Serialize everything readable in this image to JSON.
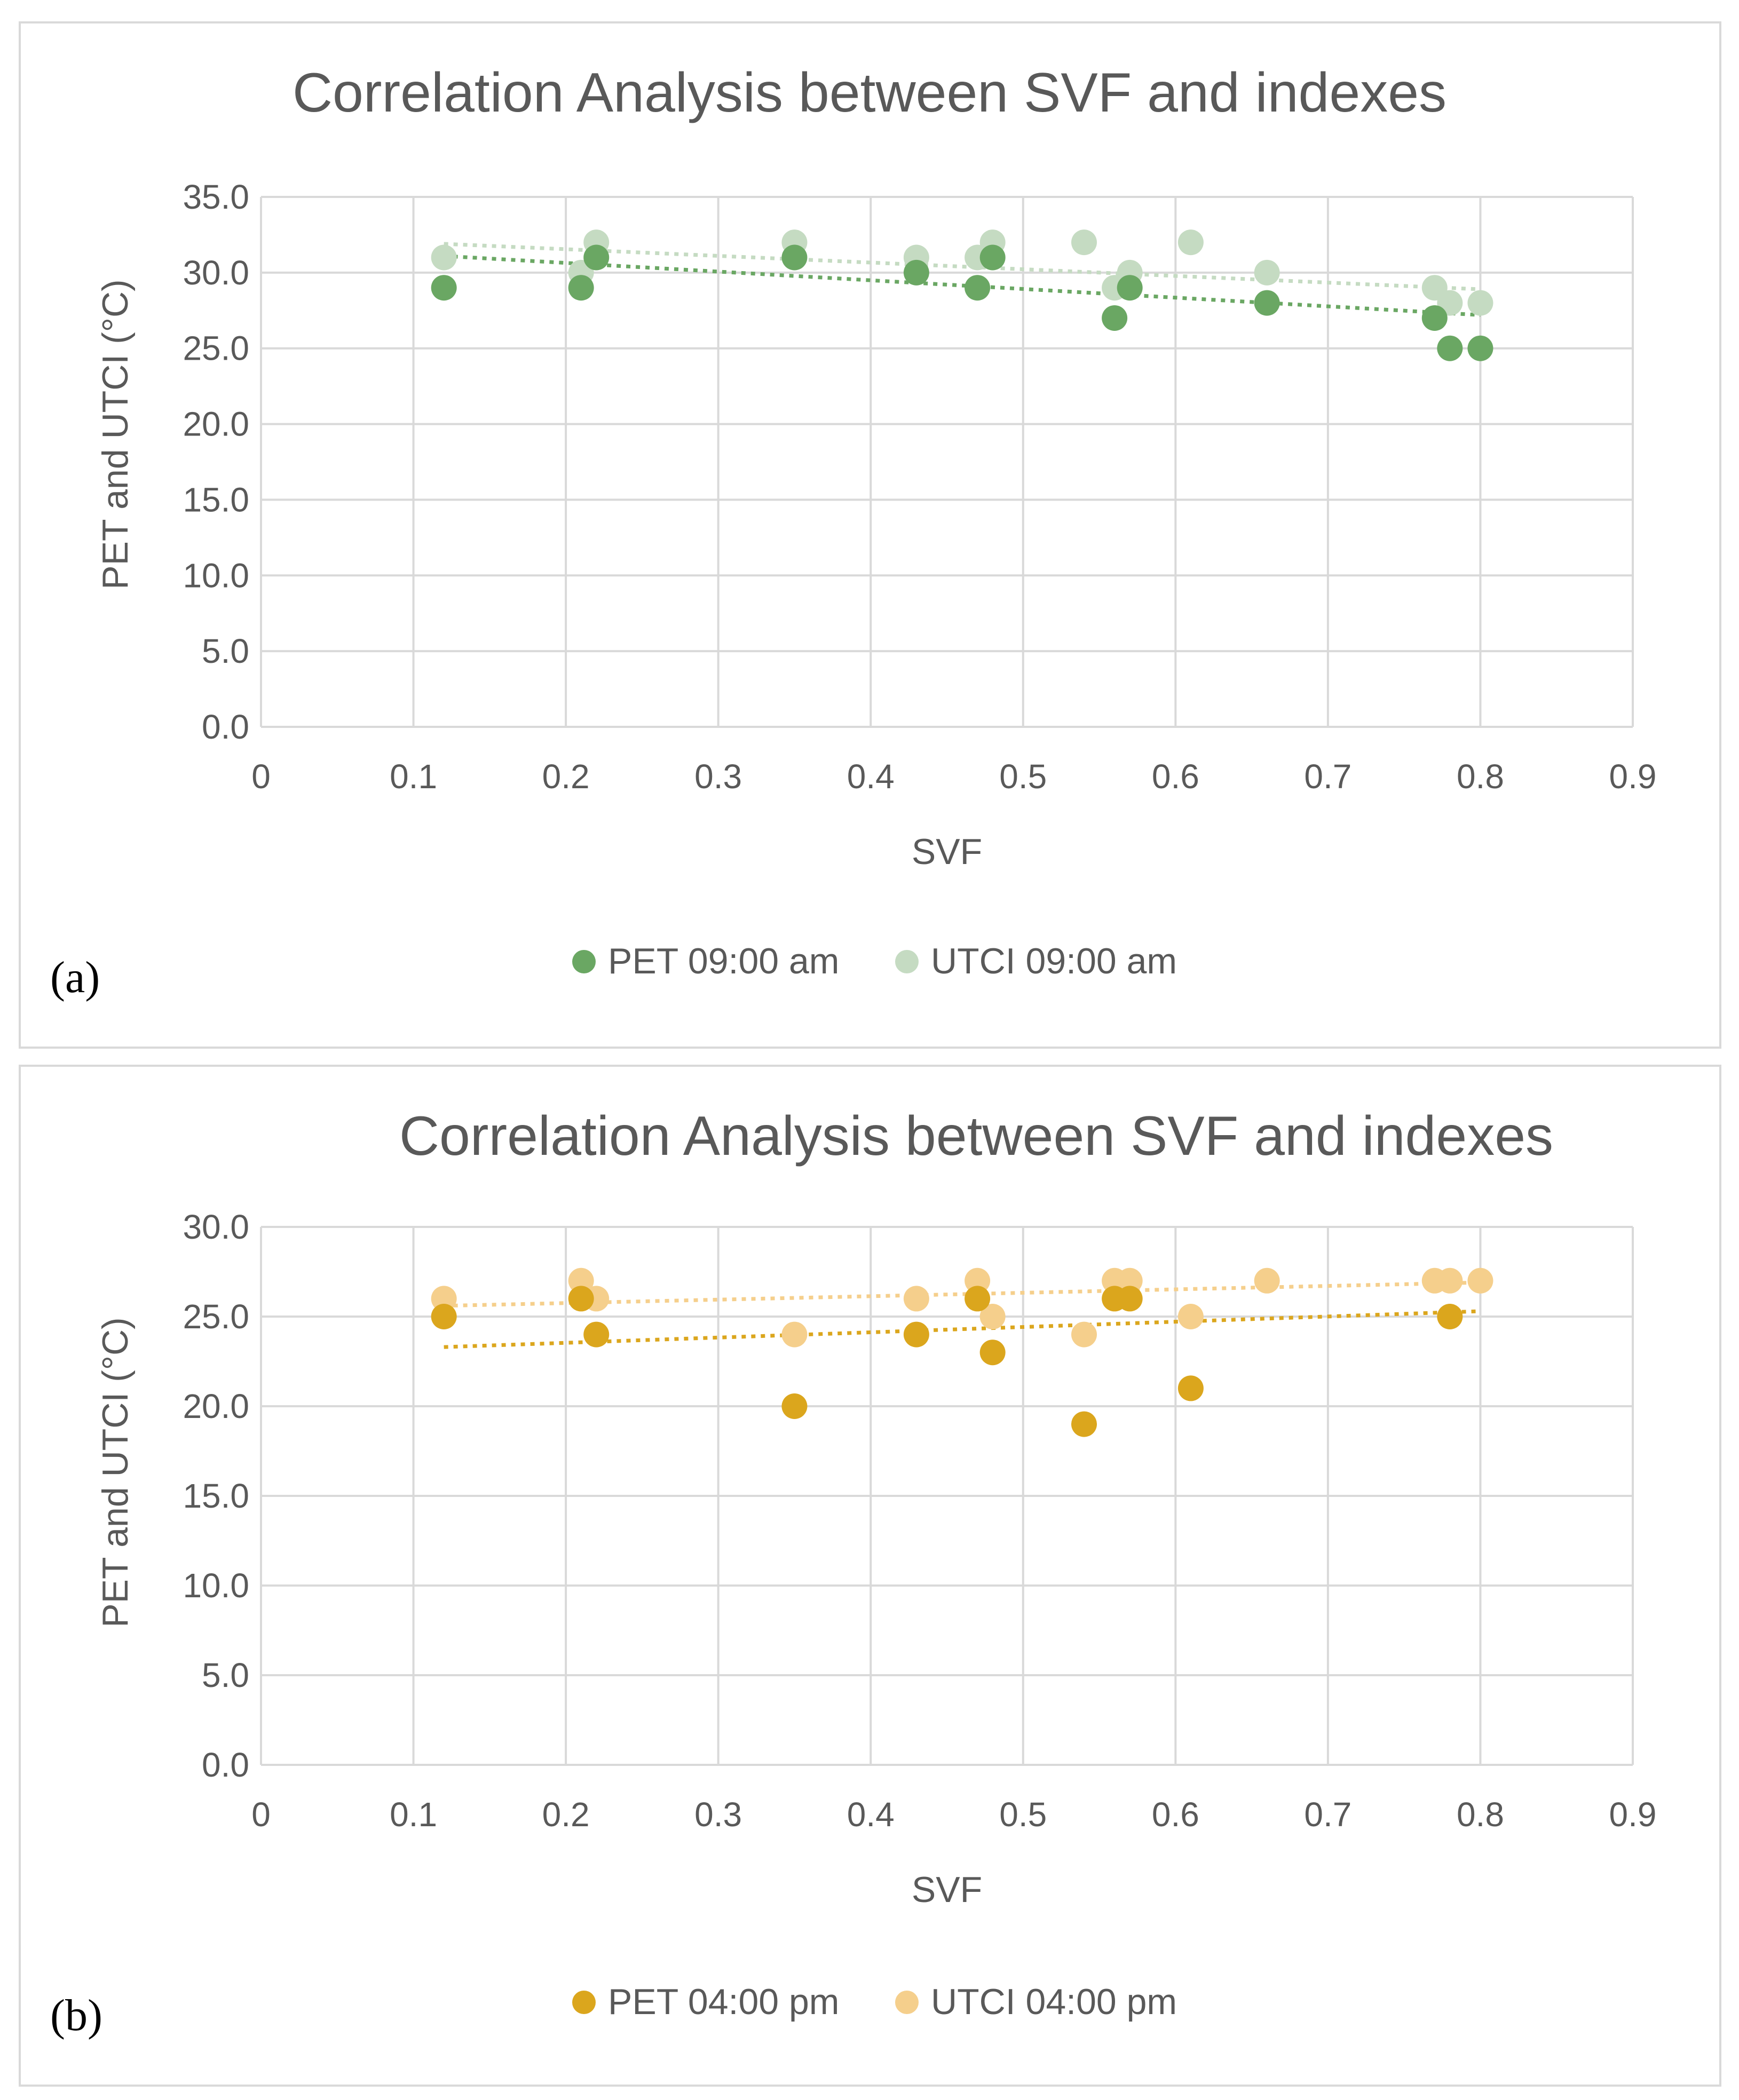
{
  "chart_data": [
    {
      "type": "scatter",
      "panel_label": "(a)",
      "title": "Correlation Analysis between SVF and indexes",
      "xlabel": "SVF",
      "ylabel": "PET and UTCI  (°C)",
      "xlim": [
        0,
        0.9
      ],
      "ylim": [
        0,
        35
      ],
      "xticks": [
        0,
        0.1,
        0.2,
        0.3,
        0.4,
        0.5,
        0.6,
        0.7,
        0.8,
        0.9
      ],
      "xtick_labels": [
        "0",
        "0.1",
        "0.2",
        "0.3",
        "0.4",
        "0.5",
        "0.6",
        "0.7",
        "0.8",
        "0.9"
      ],
      "yticks": [
        0,
        5,
        10,
        15,
        20,
        25,
        30,
        35
      ],
      "ytick_labels": [
        "0.0",
        "5.0",
        "10.0",
        "15.0",
        "20.0",
        "25.0",
        "30.0",
        "35.0"
      ],
      "grid": true,
      "legend_position": "bottom",
      "series": [
        {
          "name": "PET 09:00 am",
          "color": "#6aa763",
          "x": [
            0.12,
            0.21,
            0.22,
            0.35,
            0.43,
            0.47,
            0.48,
            0.56,
            0.57,
            0.66,
            0.77,
            0.78,
            0.8
          ],
          "y": [
            29,
            29,
            31,
            31,
            30,
            29,
            31,
            27,
            29,
            28,
            27,
            25,
            25
          ],
          "trendline": {
            "x": [
              0.12,
              0.8
            ],
            "y": [
              31.1,
              27.2
            ]
          }
        },
        {
          "name": "UTCI 09:00 am",
          "color": "#c5dbc2",
          "x": [
            0.12,
            0.21,
            0.22,
            0.35,
            0.43,
            0.47,
            0.48,
            0.54,
            0.56,
            0.57,
            0.61,
            0.66,
            0.77,
            0.78,
            0.8
          ],
          "y": [
            31,
            30,
            32,
            32,
            31,
            31,
            32,
            32,
            29,
            30,
            32,
            30,
            29,
            28,
            28
          ],
          "trendline": {
            "x": [
              0.12,
              0.8
            ],
            "y": [
              31.9,
              28.9
            ]
          }
        }
      ]
    },
    {
      "type": "scatter",
      "panel_label": "(b)",
      "title": "Correlation Analysis between SVF and indexes",
      "xlabel": "SVF",
      "ylabel": "PET and UTCI  (°C)",
      "xlim": [
        0,
        0.9
      ],
      "ylim": [
        0,
        30
      ],
      "xticks": [
        0,
        0.1,
        0.2,
        0.3,
        0.4,
        0.5,
        0.6,
        0.7,
        0.8,
        0.9
      ],
      "xtick_labels": [
        "0",
        "0.1",
        "0.2",
        "0.3",
        "0.4",
        "0.5",
        "0.6",
        "0.7",
        "0.8",
        "0.9"
      ],
      "yticks": [
        0,
        5,
        10,
        15,
        20,
        25,
        30
      ],
      "ytick_labels": [
        "0.0",
        "5.0",
        "10.0",
        "15.0",
        "20.0",
        "25.0",
        "30.0"
      ],
      "grid": true,
      "legend_position": "bottom",
      "series": [
        {
          "name": "PET 04:00 pm",
          "color": "#dba61d",
          "x": [
            0.12,
            0.21,
            0.22,
            0.35,
            0.43,
            0.47,
            0.48,
            0.54,
            0.56,
            0.57,
            0.61,
            0.78
          ],
          "y": [
            25,
            26,
            24,
            20,
            24,
            26,
            23,
            19,
            26,
            26,
            21,
            25
          ],
          "trendline": {
            "x": [
              0.12,
              0.8
            ],
            "y": [
              23.3,
              25.3
            ]
          }
        },
        {
          "name": "UTCI 04:00 pm",
          "color": "#f5cf8c",
          "x": [
            0.12,
            0.21,
            0.22,
            0.35,
            0.43,
            0.47,
            0.48,
            0.54,
            0.56,
            0.57,
            0.61,
            0.66,
            0.77,
            0.78,
            0.8
          ],
          "y": [
            26,
            27,
            26,
            24,
            26,
            27,
            25,
            24,
            27,
            27,
            25,
            27,
            27,
            27,
            27
          ],
          "trendline": {
            "x": [
              0.12,
              0.8
            ],
            "y": [
              25.6,
              26.9
            ]
          }
        }
      ]
    }
  ]
}
